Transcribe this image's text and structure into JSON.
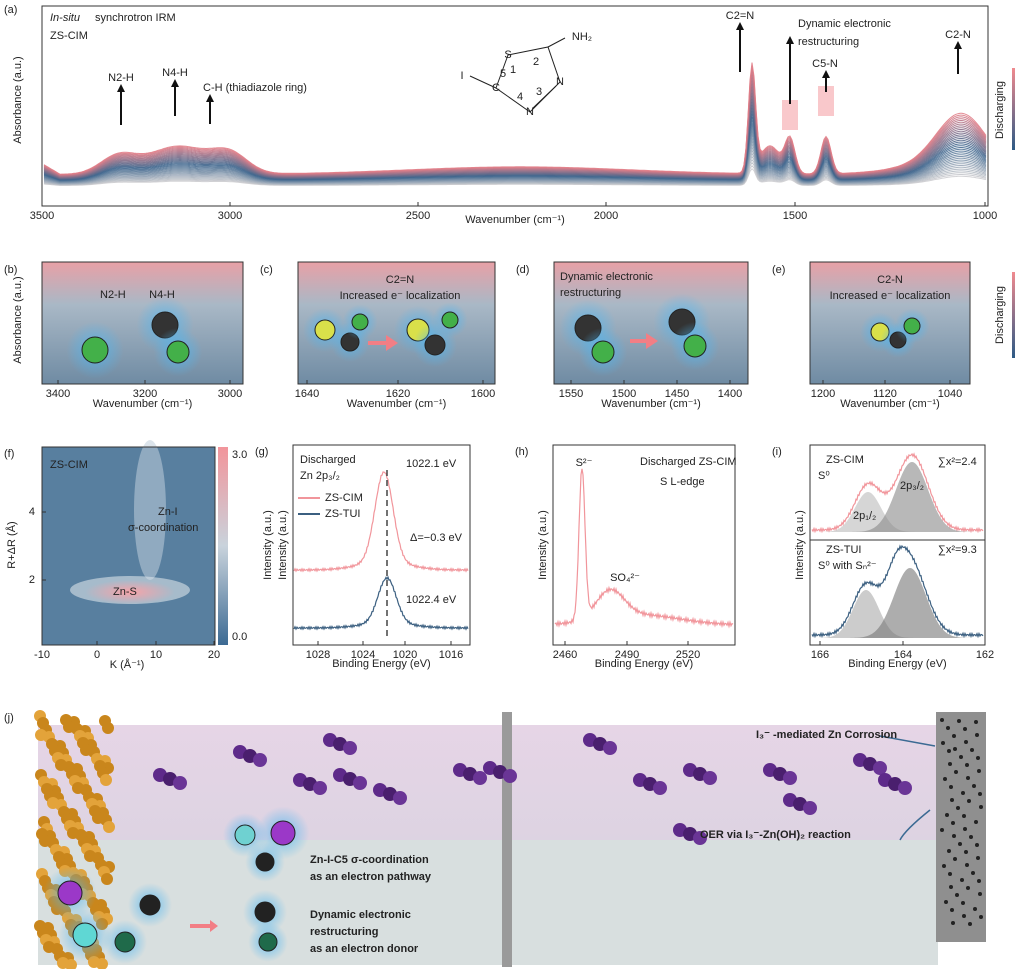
{
  "a": {
    "label": "(a)",
    "title_italic": "In-situ",
    "title": "synchrotron IRM",
    "sample": "ZS-CIM",
    "y_label": "Absorbance (a.u.)",
    "x_label": "Wavenumber (cm⁻¹)",
    "x_ticks": [
      "3500",
      "3000",
      "2500",
      "2000",
      "1500",
      "1000"
    ],
    "peaks": [
      "N2-H",
      "N4-H",
      "C-H (thiadiazole ring)",
      "C2=N",
      "Dynamic electronic",
      "restructuring",
      "C5-N",
      "C2-N"
    ],
    "molecule": {
      "atoms": [
        "S",
        "C",
        "N",
        "N",
        "I",
        "NH₂"
      ],
      "numbers": [
        "1",
        "2",
        "3",
        "4",
        "5"
      ]
    },
    "side_label": "Discharging"
  },
  "b": {
    "label": "(b)",
    "y_label": "Absorbance (a.u.)",
    "x_label": "Wavenumber (cm⁻¹)",
    "x_ticks": [
      "3400",
      "3200",
      "3000"
    ],
    "notes": [
      "N2-H",
      "N4-H"
    ]
  },
  "c": {
    "label": "(c)",
    "x_label": "Wavenumber (cm⁻¹)",
    "x_ticks": [
      "1640",
      "1620",
      "1600"
    ],
    "notes": [
      "C2=N",
      "Increased e⁻ localization"
    ]
  },
  "d": {
    "label": "(d)",
    "x_label": "Wavenumber (cm⁻¹)",
    "x_ticks": [
      "1550",
      "1500",
      "1450",
      "1400"
    ],
    "notes": [
      "Dynamic electronic",
      "restructuring"
    ]
  },
  "e": {
    "label": "(e)",
    "x_label": "Wavenumber (cm⁻¹)",
    "x_ticks": [
      "1200",
      "1120",
      "1040"
    ],
    "notes": [
      "C2-N",
      "Increased e⁻ localization"
    ],
    "side_label": "Discharging"
  },
  "f": {
    "label": "(f)",
    "sample": "ZS-CIM",
    "y_label": "R+ΔR (Å)",
    "x_label": "K (Å⁻¹)",
    "x_ticks": [
      "-10",
      "0",
      "10",
      "20"
    ],
    "y_ticks": [
      "2",
      "4"
    ],
    "notes": [
      "Zn-I",
      "σ-coordination",
      "Zn-S"
    ],
    "colorbar_label": "Intensity (a.u.)",
    "colorbar_ticks": [
      "3.0",
      "0.0"
    ]
  },
  "g": {
    "label": "(g)",
    "y_label": "Intensity (a.u.)",
    "x_label": "Binding Energy (eV)",
    "x_ticks": [
      "1028",
      "1024",
      "1020",
      "1016"
    ],
    "notes": [
      "Discharged",
      "Zn 2p₃/₂",
      "1022.1 eV",
      "Δ=−0.3 eV",
      "1022.4 eV"
    ],
    "legend": [
      "ZS-CIM",
      "ZS-TUI"
    ]
  },
  "h": {
    "label": "(h)",
    "y_label": "Intensity (a.u.)",
    "x_label": "Binding Energy (eV)",
    "x_ticks": [
      "2460",
      "2490",
      "2520"
    ],
    "notes": [
      "S²⁻",
      "Discharged ZS-CIM",
      "S L-edge",
      "SO₄²⁻"
    ]
  },
  "i": {
    "label": "(i)",
    "y_label": "Intensity (a.u.)",
    "x_label": "Binding Energy (eV)",
    "x_ticks": [
      "166",
      "164",
      "162"
    ],
    "notes": [
      "ZS-CIM",
      "S⁰",
      "∑x²=2.4",
      "2p₁/₂",
      "2p₃/₂",
      "ZS-TUI",
      "S⁰ with Sₙ²⁻",
      "∑x²=9.3"
    ]
  },
  "j": {
    "label": "(j)",
    "notes": [
      "I₃⁻ -mediated Zn Corrosion",
      "OER via I₃⁻-Zn(OH)₂ reaction",
      "Zn-I-C5 σ-coordination",
      "as an electron pathway",
      "Dynamic electronic",
      "restructuring",
      "as an electron donor"
    ]
  }
}
